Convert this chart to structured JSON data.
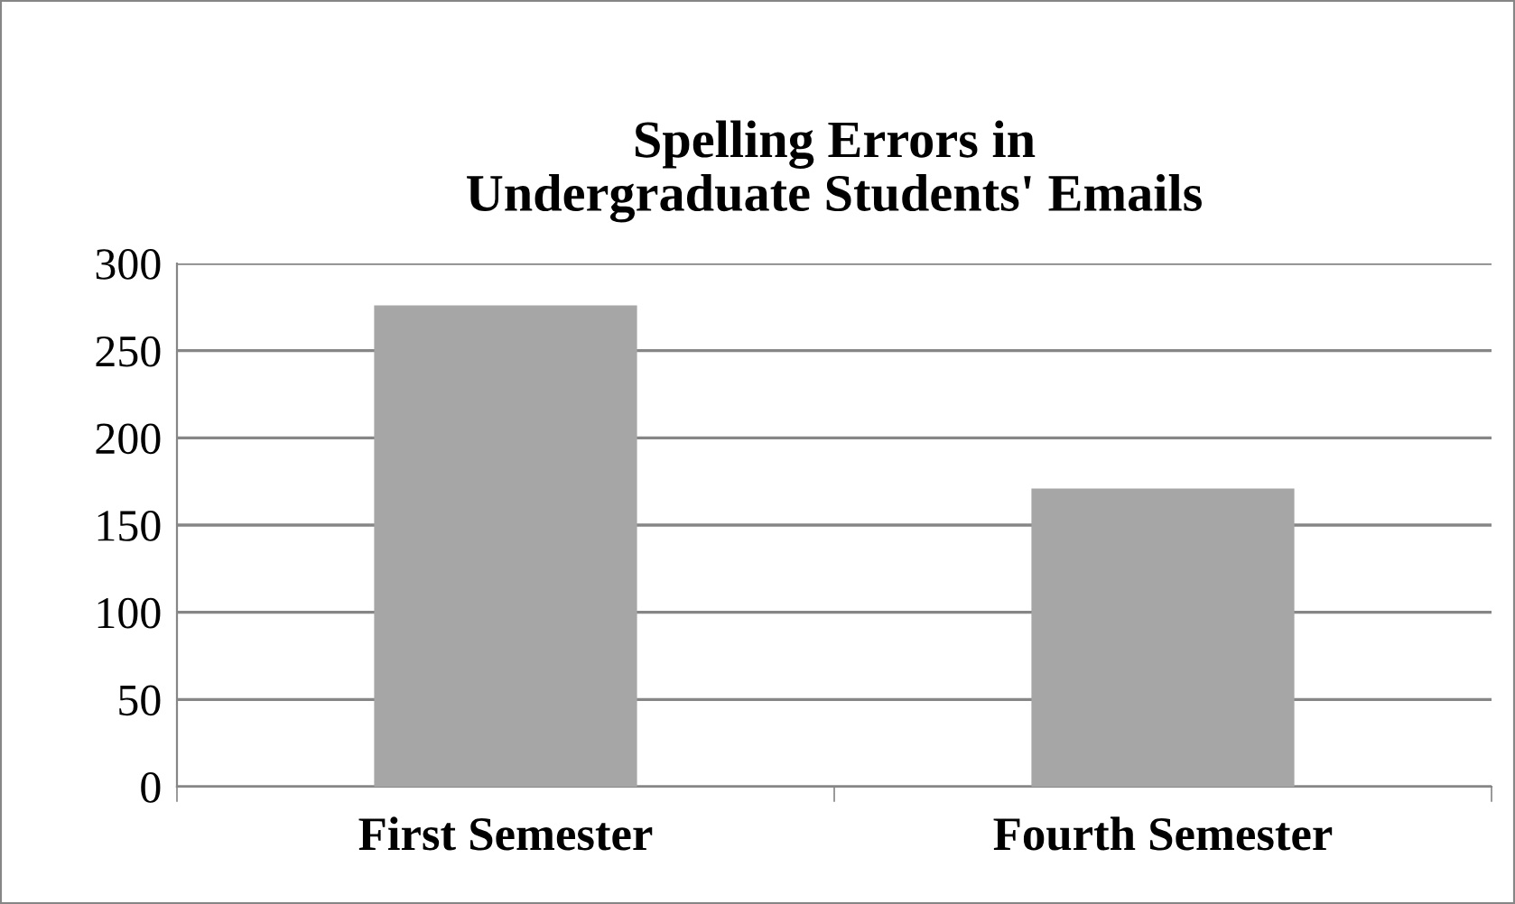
{
  "chart_data": {
    "type": "bar",
    "title": "Spelling Errors in\nUndergraduate Students' Emails",
    "categories": [
      "First Semester",
      "Fourth Semester"
    ],
    "values": [
      276,
      171
    ],
    "color": "#a6a6a6",
    "ylim": [
      0,
      300
    ],
    "yticks": [
      0,
      50,
      100,
      150,
      200,
      250,
      300
    ],
    "grid": "y",
    "legend": false
  }
}
